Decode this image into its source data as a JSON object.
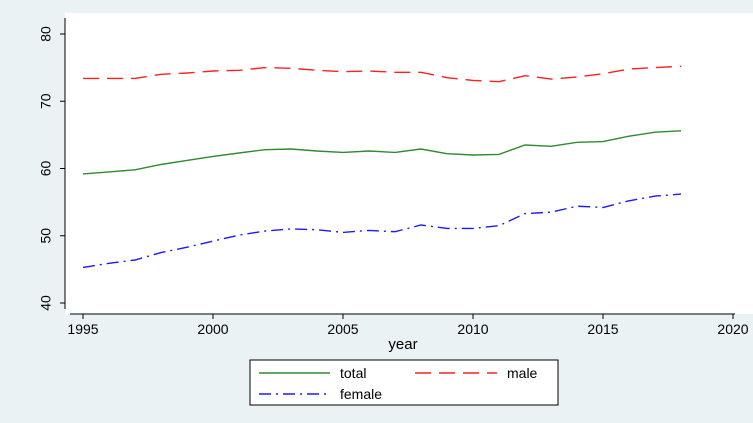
{
  "chart_data": {
    "type": "line",
    "title": "",
    "xlabel": "year",
    "ylabel": "",
    "xlim": [
      1995,
      2020
    ],
    "ylim": [
      40,
      80
    ],
    "xticks": [
      1995,
      2000,
      2005,
      2010,
      2015,
      2020
    ],
    "yticks": [
      40,
      50,
      60,
      70,
      80
    ],
    "grid": false,
    "legend_position": "bottom",
    "x": [
      1995,
      1996,
      1997,
      1998,
      1999,
      2000,
      2001,
      2002,
      2003,
      2004,
      2005,
      2006,
      2007,
      2008,
      2009,
      2010,
      2011,
      2012,
      2013,
      2014,
      2015,
      2016,
      2017,
      2018
    ],
    "series": [
      {
        "name": "total",
        "color": "#2e8b2e",
        "dash": "solid",
        "values": [
          59.2,
          59.5,
          59.8,
          60.6,
          61.2,
          61.8,
          62.3,
          62.8,
          62.9,
          62.6,
          62.4,
          62.6,
          62.4,
          62.9,
          62.2,
          62.0,
          62.1,
          63.5,
          63.3,
          63.9,
          64.0,
          64.8,
          65.4,
          65.6
        ]
      },
      {
        "name": "male",
        "color": "#ff2020",
        "dash": "long-dash",
        "values": [
          73.4,
          73.4,
          73.4,
          74.0,
          74.2,
          74.5,
          74.6,
          75.0,
          74.9,
          74.6,
          74.4,
          74.5,
          74.3,
          74.3,
          73.5,
          73.1,
          72.9,
          73.8,
          73.3,
          73.6,
          74.1,
          74.8,
          75.0,
          75.2
        ]
      },
      {
        "name": "female",
        "color": "#1a1aff",
        "dash": "dash-dot",
        "values": [
          45.3,
          45.9,
          46.4,
          47.5,
          48.3,
          49.2,
          50.1,
          50.7,
          51.0,
          50.9,
          50.5,
          50.8,
          50.6,
          51.6,
          51.1,
          51.1,
          51.5,
          53.3,
          53.5,
          54.4,
          54.2,
          55.2,
          55.9,
          56.2
        ]
      }
    ]
  }
}
